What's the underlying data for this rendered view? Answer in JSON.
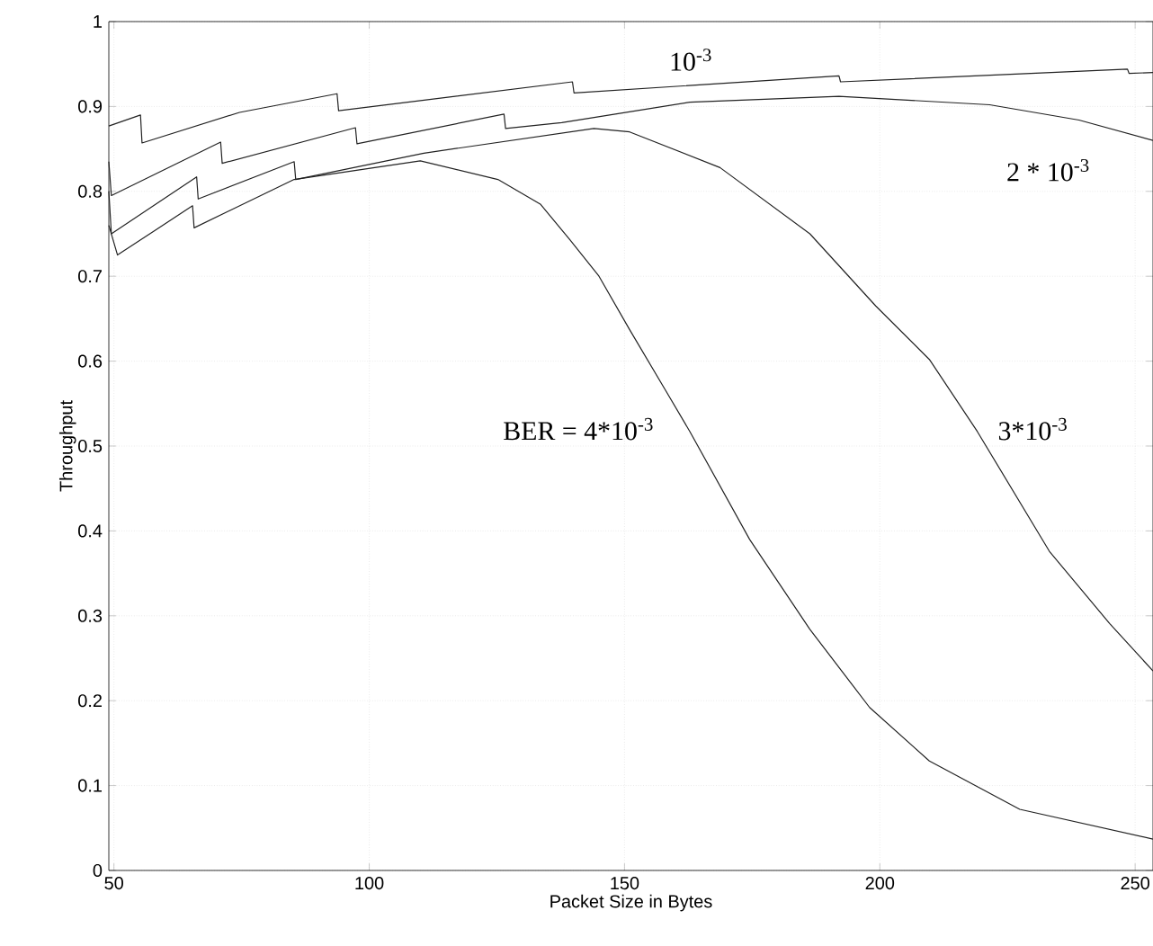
{
  "chart_data": {
    "type": "line",
    "xlabel": "Packet Size in Bytes",
    "ylabel": "Throughput",
    "xlim": [
      49,
      253.5
    ],
    "ylim": [
      0,
      1
    ],
    "xticks": [
      50,
      100,
      150,
      200,
      250
    ],
    "yticks": [
      0,
      0.1,
      0.2,
      0.3,
      0.4,
      0.5,
      0.6,
      0.7,
      0.8,
      0.9,
      1
    ],
    "grid": true,
    "legend": false,
    "marker": "none",
    "line_style": "solid",
    "series": [
      {
        "name": "10$^{-3}$",
        "color": "#222222",
        "x": [
          49,
          55.2,
          55.5,
          74.6,
          93.7,
          94,
          139.8,
          140.1,
          192,
          192.3,
          248.5,
          248.8,
          253.5
        ],
        "values": [
          0.877,
          0.89,
          0.857,
          0.893,
          0.915,
          0.895,
          0.929,
          0.916,
          0.936,
          0.929,
          0.944,
          0.939,
          0.94
        ]
      },
      {
        "name": "2 * 10$^{-3}$",
        "color": "#222222",
        "x": [
          49,
          49.5,
          70.9,
          71.2,
          97.3,
          97.6,
          126.4,
          126.7,
          137.7,
          162.8,
          192,
          221.5,
          239,
          253.5
        ],
        "values": [
          0.835,
          0.795,
          0.858,
          0.833,
          0.875,
          0.856,
          0.891,
          0.874,
          0.881,
          0.905,
          0.912,
          0.902,
          0.884,
          0.86
        ]
      },
      {
        "name": "3*10$^{-3}$",
        "color": "#222222",
        "x": [
          49,
          49.5,
          66.2,
          66.5,
          85.3,
          85.6,
          110.7,
          144,
          151,
          168.7,
          186.3,
          199.2,
          209.7,
          219.1,
          233.2,
          245,
          253.5
        ],
        "values": [
          0.8,
          0.75,
          0.817,
          0.791,
          0.835,
          0.814,
          0.845,
          0.874,
          0.87,
          0.828,
          0.75,
          0.665,
          0.602,
          0.517,
          0.376,
          0.291,
          0.235
        ]
      },
      {
        "name": "BER = 4*10$^{-3}$",
        "color": "#222222",
        "x": [
          49,
          50.7,
          65.4,
          65.7,
          85.3,
          110,
          125.2,
          133.5,
          139.3,
          145,
          151,
          158,
          162.8,
          174.5,
          186.3,
          198,
          209.7,
          227.4,
          253.5
        ],
        "values": [
          0.76,
          0.725,
          0.783,
          0.757,
          0.814,
          0.836,
          0.814,
          0.785,
          0.743,
          0.7,
          0.637,
          0.566,
          0.517,
          0.39,
          0.284,
          0.192,
          0.129,
          0.072,
          0.037
        ]
      }
    ]
  }
}
